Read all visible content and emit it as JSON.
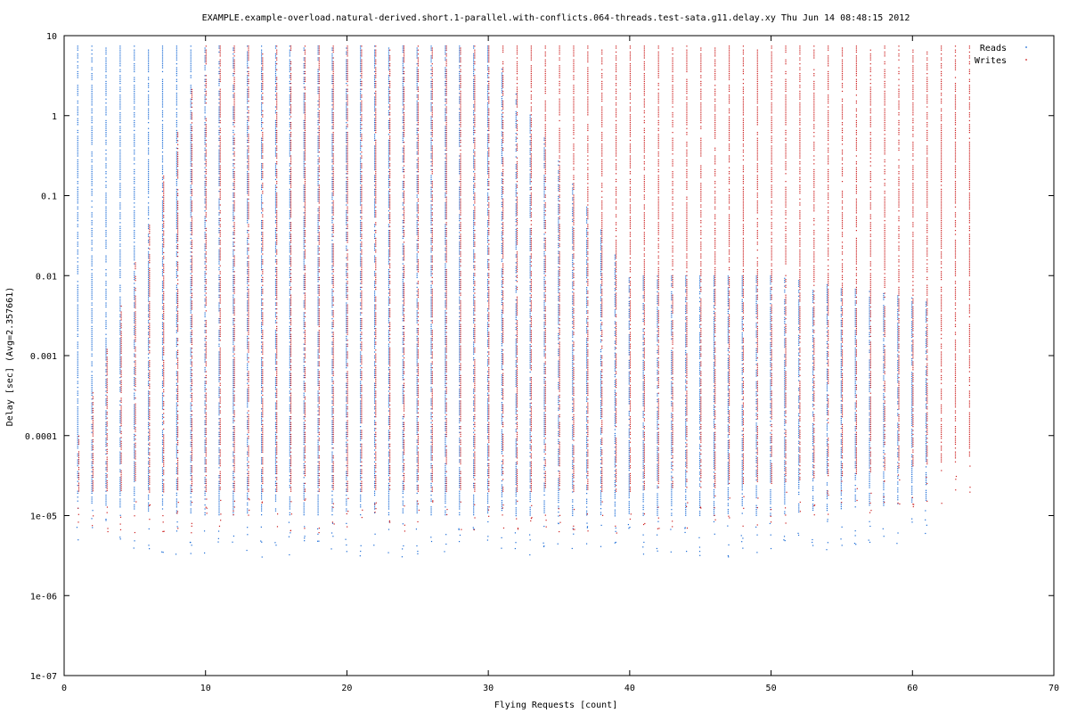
{
  "chart_data": {
    "type": "scatter",
    "title": "EXAMPLE.example-overload.natural-derived.short.1-parallel.with-conflicts.064-threads.test-sata.g11.delay.xy Thu Jun 14 08:48:15 2012",
    "xlabel": "Flying Requests [count]",
    "ylabel": "Delay [sec]  (Avg=2.357661)",
    "xlim": [
      0,
      70
    ],
    "ylim": [
      1e-07,
      10
    ],
    "yscale": "log",
    "grid": false,
    "legend_position": "top-right",
    "x_ticks": [
      "0",
      "10",
      "20",
      "30",
      "40",
      "50",
      "60",
      "70"
    ],
    "y_ticks": [
      "1e-07",
      "1e-06",
      "1e-05",
      "0.0001",
      "0.001",
      "0.01",
      "0.1",
      "1",
      "10"
    ],
    "series": [
      {
        "name": "Reads",
        "color": "#1a6bd6",
        "x_range": [
          1,
          61
        ],
        "columns": [
          {
            "x": 1,
            "max": 7.5,
            "min": 1.5e-05
          },
          {
            "x": 5,
            "max": 7.5,
            "min": 1.2e-05
          },
          {
            "x": 10,
            "max": 7.5,
            "min": 1e-05
          },
          {
            "x": 20,
            "max": 7.5,
            "min": 1e-05
          },
          {
            "x": 30,
            "max": 7.5,
            "min": 1e-05
          },
          {
            "x": 40,
            "max": 0.01,
            "min": 1e-05
          },
          {
            "x": 50,
            "max": 0.01,
            "min": 1e-05
          },
          {
            "x": 61,
            "max": 0.005,
            "min": 1.5e-05
          }
        ]
      },
      {
        "name": "Writes",
        "color": "#cc1f1f",
        "x_range": [
          1,
          64
        ],
        "columns": [
          {
            "x": 1,
            "max": 0.0001,
            "min": 2e-05
          },
          {
            "x": 10,
            "max": 7.5,
            "min": 2e-05
          },
          {
            "x": 20,
            "max": 7.5,
            "min": 2e-05
          },
          {
            "x": 30,
            "max": 7.5,
            "min": 2e-05
          },
          {
            "x": 40,
            "max": 7.5,
            "min": 2e-05
          },
          {
            "x": 50,
            "max": 7.5,
            "min": 2.5e-05
          },
          {
            "x": 64,
            "max": 7.5,
            "min": 5e-05
          }
        ]
      }
    ]
  }
}
